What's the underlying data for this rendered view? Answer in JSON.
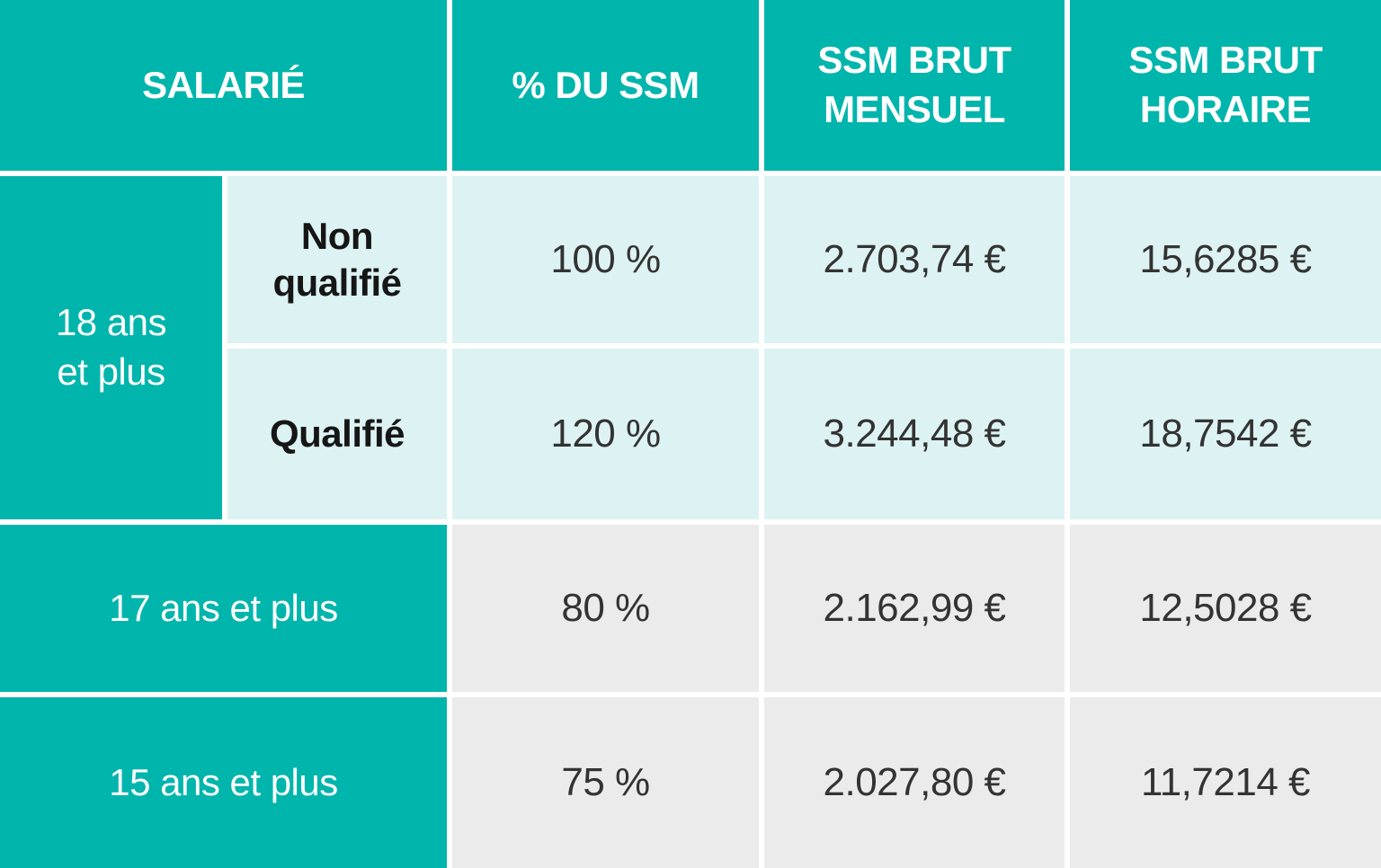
{
  "colors": {
    "teal_accent": "#00B5AC",
    "light_teal_cell": "#DDF2F3",
    "light_gray_cell": "#EBEBEB",
    "header_text": "#FFFFFF",
    "value_text": "#333333",
    "divider": "#FFFFFF"
  },
  "chart_data": {
    "type": "table",
    "title": "",
    "columns": [
      "SALARIÉ",
      "% DU SSM",
      "SSM BRUT MENSUEL",
      "SSM BRUT HORAIRE"
    ],
    "row_groups": {
      "age_18": "18 ans et plus",
      "age_17": "17 ans et plus",
      "age_15": "15 ans et plus"
    },
    "rows": [
      {
        "salarie_age": "18 ans et plus",
        "salarie_qualification": "Non qualifié",
        "pct_du_ssm": "100 %",
        "ssm_brut_mensuel": "2.703,74 €",
        "ssm_brut_horaire": "15,6285 €"
      },
      {
        "salarie_age": "18 ans et plus",
        "salarie_qualification": "Qualifié",
        "pct_du_ssm": "120 %",
        "ssm_brut_mensuel": "3.244,48 €",
        "ssm_brut_horaire": "18,7542 €"
      },
      {
        "salarie_age": "17 ans et plus",
        "salarie_qualification": "",
        "pct_du_ssm": "80 %",
        "ssm_brut_mensuel": "2.162,99 €",
        "ssm_brut_horaire": "12,5028 €"
      },
      {
        "salarie_age": "15 ans et plus",
        "salarie_qualification": "",
        "pct_du_ssm": "75 %",
        "ssm_brut_mensuel": "2.027,80 €",
        "ssm_brut_horaire": "11,7214 €"
      }
    ]
  }
}
